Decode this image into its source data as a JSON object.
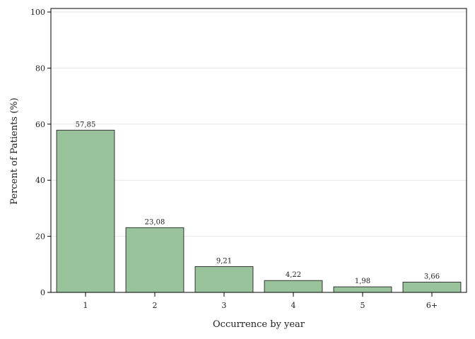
{
  "chart_data": {
    "type": "bar",
    "xlabel": "Occurrence by year",
    "ylabel": "Percent of Patients (%)",
    "categories": [
      "1",
      "2",
      "3",
      "4",
      "5",
      "6+"
    ],
    "values": [
      57.85,
      23.08,
      9.21,
      4.22,
      1.98,
      3.66
    ],
    "value_labels": [
      "57,85",
      "23,08",
      "9,21",
      "4,22",
      "1,98",
      "3,66"
    ],
    "ylim": [
      0,
      100
    ],
    "yticks": [
      0,
      20,
      40,
      60,
      80,
      100
    ],
    "grid": true,
    "legend": "none",
    "colors": {
      "bar_fill": "#99c39a",
      "bar_stroke": "#333333",
      "grid": "#e6e6e6",
      "frame": "#000000"
    }
  }
}
